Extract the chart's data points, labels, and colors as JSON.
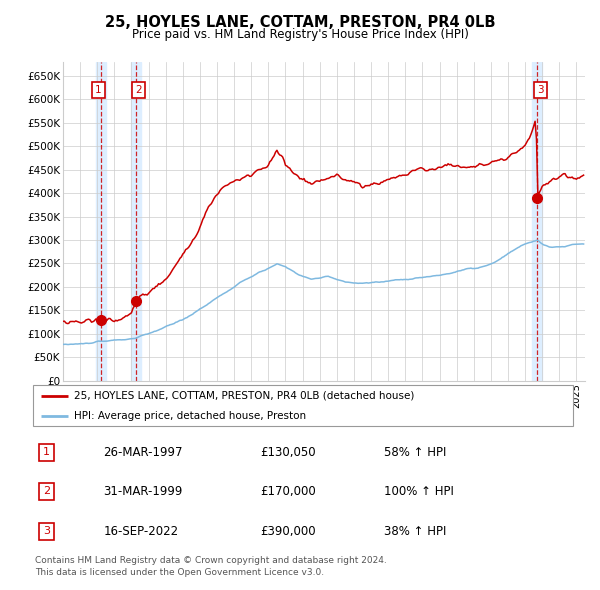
{
  "title": "25, HOYLES LANE, COTTAM, PRESTON, PR4 0LB",
  "subtitle": "Price paid vs. HM Land Registry's House Price Index (HPI)",
  "ylabel_ticks": [
    "£0",
    "£50K",
    "£100K",
    "£150K",
    "£200K",
    "£250K",
    "£300K",
    "£350K",
    "£400K",
    "£450K",
    "£500K",
    "£550K",
    "£600K",
    "£650K"
  ],
  "ytick_values": [
    0,
    50000,
    100000,
    150000,
    200000,
    250000,
    300000,
    350000,
    400000,
    450000,
    500000,
    550000,
    600000,
    650000
  ],
  "xlim_start": 1995.0,
  "xlim_end": 2025.5,
  "ylim_min": 0,
  "ylim_max": 680000,
  "sale_dates": [
    1997.23,
    1999.25,
    2022.71
  ],
  "sale_prices": [
    130050,
    170000,
    390000
  ],
  "sale_labels": [
    "1",
    "2",
    "3"
  ],
  "legend_line1": "25, HOYLES LANE, COTTAM, PRESTON, PR4 0LB (detached house)",
  "legend_line2": "HPI: Average price, detached house, Preston",
  "table_rows": [
    [
      "1",
      "26-MAR-1997",
      "£130,050",
      "58% ↑ HPI"
    ],
    [
      "2",
      "31-MAR-1999",
      "£170,000",
      "100% ↑ HPI"
    ],
    [
      "3",
      "16-SEP-2022",
      "£390,000",
      "38% ↑ HPI"
    ]
  ],
  "footer": "Contains HM Land Registry data © Crown copyright and database right 2024.\nThis data is licensed under the Open Government Licence v3.0.",
  "hpi_color": "#7fb9e0",
  "price_color": "#cc0000",
  "shade_color": "#ddeeff",
  "grid_color": "#cccccc",
  "background_color": "#ffffff"
}
